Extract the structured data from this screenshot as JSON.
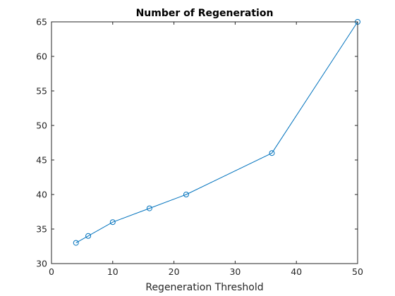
{
  "chart_data": {
    "type": "line",
    "title": "Number of Regeneration",
    "xlabel": "Regeneration Threshold",
    "ylabel": "",
    "xlim": [
      0,
      50
    ],
    "ylim": [
      30,
      65
    ],
    "xticks": [
      0,
      10,
      20,
      30,
      40,
      50
    ],
    "yticks": [
      30,
      35,
      40,
      45,
      50,
      55,
      60,
      65
    ],
    "grid": false,
    "marker": "circle",
    "series": [
      {
        "x": [
          4,
          6,
          10,
          16,
          22,
          36,
          50
        ],
        "y": [
          33,
          34,
          36,
          38,
          40,
          46,
          65
        ],
        "color": "#0072BD"
      }
    ]
  }
}
